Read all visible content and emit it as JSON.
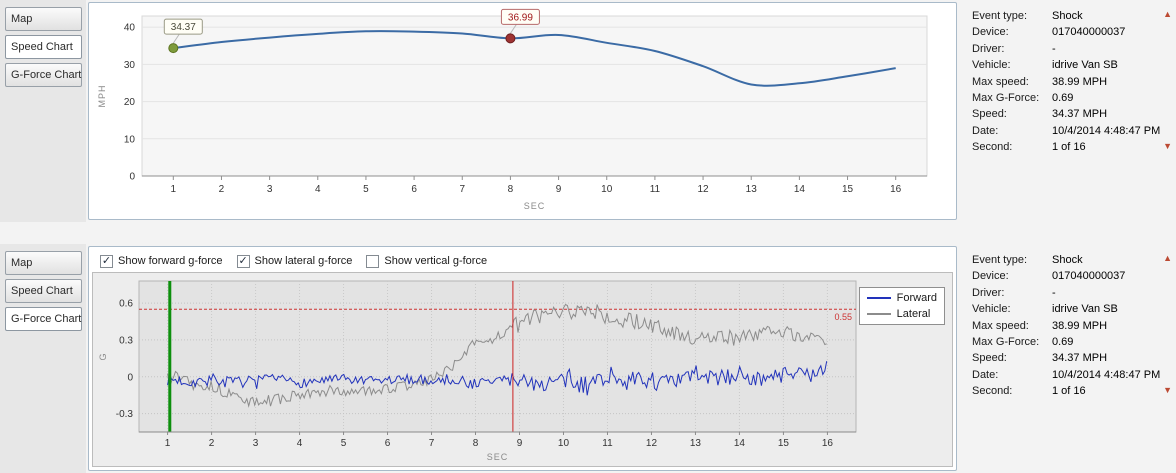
{
  "tabs": {
    "items": [
      "Map",
      "Speed Chart",
      "G-Force Chart"
    ],
    "top_selected": "Speed Chart",
    "bottom_selected": "G-Force Chart"
  },
  "checkboxes": [
    {
      "label": "Show forward g-force",
      "checked": true
    },
    {
      "label": "Show lateral g-force",
      "checked": true
    },
    {
      "label": "Show vertical g-force",
      "checked": false
    }
  ],
  "info_panel": {
    "rows": [
      {
        "label": "Event type:",
        "value": "Shock"
      },
      {
        "label": "Device:",
        "value": "017040000037"
      },
      {
        "label": "Driver:",
        "value": "-"
      },
      {
        "label": "Vehicle:",
        "value": "idrive Van SB"
      },
      {
        "label": "Max speed:",
        "value": "38.99 MPH"
      },
      {
        "label": "Max G-Force:",
        "value": "0.69"
      },
      {
        "label": "Speed:",
        "value": "34.37 MPH"
      },
      {
        "label": "Date:",
        "value": "10/4/2014 4:48:47 PM"
      },
      {
        "label": "Second:",
        "value": "1 of 16"
      }
    ]
  },
  "chart_data": [
    {
      "type": "line",
      "title": "Speed Chart",
      "xlabel": "SEC",
      "ylabel": "MPH",
      "x": [
        1,
        2,
        3,
        4,
        5,
        6,
        7,
        8,
        9,
        10,
        11,
        12,
        13,
        14,
        15,
        16
      ],
      "values": [
        34.37,
        36.0,
        37.2,
        38.2,
        38.9,
        38.8,
        38.3,
        36.99,
        37.9,
        35.8,
        33.6,
        29.5,
        24.6,
        24.9,
        26.8,
        29.0
      ],
      "xlim": [
        0.35,
        16.65
      ],
      "ylim": [
        0,
        43
      ],
      "yticks": [
        0,
        10,
        20,
        30,
        40
      ],
      "color": "#3b6ba5",
      "markers": [
        {
          "x": 1,
          "y": 34.37,
          "label": "34.37",
          "fill": "#7e9b3c",
          "ring": "#5c731f",
          "box_border": "#9a9a85",
          "text_color": "#4a4a3a"
        },
        {
          "x": 8,
          "y": 36.99,
          "label": "36.99",
          "fill": "#9e3333",
          "ring": "#6f1f1f",
          "box_border": "#b76a6a",
          "text_color": "#a01818"
        }
      ]
    },
    {
      "type": "line",
      "title": "G-Force Chart",
      "xlabel": "SEC",
      "ylabel": "G",
      "xticks": [
        1,
        2,
        3,
        4,
        5,
        6,
        7,
        8,
        9,
        10,
        11,
        12,
        13,
        14,
        15,
        16
      ],
      "xlim": [
        0.35,
        16.65
      ],
      "ylim": [
        -0.45,
        0.78
      ],
      "yticks": [
        -0.3,
        0,
        0.3,
        0.6
      ],
      "sample_step": 0.045,
      "threshold": {
        "value": 0.55,
        "label": "0.55",
        "color": "#cc3333"
      },
      "vlines": [
        {
          "x": 1.05,
          "color": "#0d8f0d",
          "width": 3,
          "name": "event-start-line"
        },
        {
          "x": 8.85,
          "color": "#cc2222",
          "width": 1,
          "name": "event-trigger-line"
        }
      ],
      "legend_position": "right",
      "series": [
        {
          "name": "Forward",
          "color": "#2233bb",
          "seed": 7,
          "anchors": [
            -0.02,
            -0.04,
            -0.02,
            -0.05,
            -0.03,
            -0.02,
            -0.05,
            -0.03,
            -0.02,
            -0.04,
            -0.03,
            -0.02,
            -0.03,
            -0.02,
            -0.06,
            -0.03,
            -0.02,
            -0.06,
            -0.03,
            -0.08,
            0.02,
            -0.04,
            -0.02,
            -0.06,
            0.03,
            -0.02,
            0.02,
            -0.03,
            0.03,
            0.02,
            0.05
          ],
          "amp": [
            0.05,
            0.05,
            0.05,
            0.05,
            0.04,
            0.04,
            0.04,
            0.04,
            0.04,
            0.04,
            0.04,
            0.04,
            0.04,
            0.045,
            0.05,
            0.05,
            0.06,
            0.07,
            0.07,
            0.08,
            0.08,
            0.08,
            0.07,
            0.07,
            0.07,
            0.07,
            0.07,
            0.06,
            0.05,
            0.05,
            0.05
          ]
        },
        {
          "name": "Lateral",
          "color": "#8c8c8c",
          "seed": 13,
          "anchors": [
            0.02,
            -0.02,
            -0.08,
            -0.15,
            -0.22,
            -0.18,
            -0.15,
            -0.13,
            -0.12,
            -0.11,
            -0.1,
            -0.07,
            -0.02,
            0.1,
            0.27,
            0.33,
            0.45,
            0.5,
            0.52,
            0.55,
            0.5,
            0.46,
            0.42,
            0.36,
            0.3,
            0.34,
            0.3,
            0.38,
            0.36,
            0.32,
            0.3
          ],
          "amp": [
            0.05,
            0.05,
            0.05,
            0.05,
            0.05,
            0.05,
            0.04,
            0.04,
            0.04,
            0.04,
            0.04,
            0.04,
            0.04,
            0.05,
            0.05,
            0.05,
            0.06,
            0.07,
            0.07,
            0.07,
            0.07,
            0.07,
            0.06,
            0.06,
            0.05,
            0.06,
            0.06,
            0.07,
            0.06,
            0.05,
            0.05
          ]
        }
      ]
    }
  ],
  "icons": {
    "panel_scroll_up": "▲",
    "panel_scroll_down": "▼",
    "check_glyph": "✓"
  }
}
